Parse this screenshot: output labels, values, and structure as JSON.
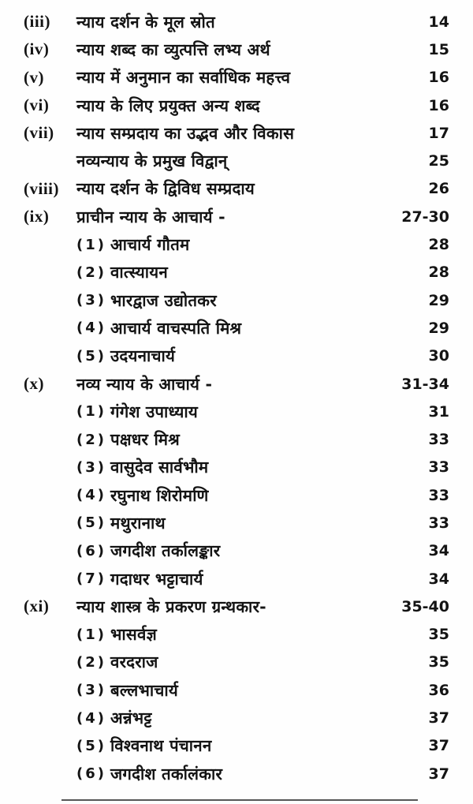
{
  "page": {
    "background": "#fefefe",
    "text_color": "#141414",
    "language": "Hindi (Devanagari)",
    "kind": "book-table-of-contents"
  },
  "toc": {
    "entries": [
      {
        "type": "main",
        "marker": "(iii)",
        "title": "न्याय दर्शन के मूल स्रोत",
        "page": "14"
      },
      {
        "type": "main",
        "marker": "(iv)",
        "title": "न्याय शब्द का व्युत्पत्ति लभ्य अर्थ",
        "page": "15"
      },
      {
        "type": "main",
        "marker": "(v)",
        "title": "न्याय में अनुमान का सर्वाधिक महत्त्व",
        "page": "16"
      },
      {
        "type": "main",
        "marker": "(vi)",
        "title": "न्याय के लिए प्रयुक्त अन्य शब्द",
        "page": "16"
      },
      {
        "type": "main",
        "marker": "(vii)",
        "title": "न्याय सम्प्रदाय का उद्भव और विकास",
        "page": "17"
      },
      {
        "type": "continuation",
        "marker": "",
        "title": "नव्यन्याय के प्रमुख विद्वान्",
        "page": "25"
      },
      {
        "type": "main",
        "marker": "(viii)",
        "title": "न्याय दर्शन के द्विविध सम्प्रदाय",
        "page": "26"
      },
      {
        "type": "main",
        "marker": "(ix)",
        "title": "प्राचीन न्याय के आचार्य -",
        "page": "27-30"
      },
      {
        "type": "sub",
        "marker": "(1)",
        "title": "आचार्य गौतम",
        "page": "28"
      },
      {
        "type": "sub",
        "marker": "(2)",
        "title": "वात्स्यायन",
        "page": "28"
      },
      {
        "type": "sub",
        "marker": "(3)",
        "title": "भारद्वाज उद्योतकर",
        "page": "29"
      },
      {
        "type": "sub",
        "marker": "(4)",
        "title": "आचार्य वाचस्पति मिश्र",
        "page": "29"
      },
      {
        "type": "sub",
        "marker": "(5)",
        "title": "उदयनाचार्य",
        "page": "30"
      },
      {
        "type": "main",
        "marker": "(x)",
        "title": "नव्य न्याय के आचार्य -",
        "page": "31-34"
      },
      {
        "type": "sub",
        "marker": "(1)",
        "title": "गंगेश उपाध्याय",
        "page": "31"
      },
      {
        "type": "sub",
        "marker": "(2)",
        "title": "पक्षधर मिश्र",
        "page": "33"
      },
      {
        "type": "sub",
        "marker": "(3)",
        "title": "वासुदेव सार्वभौम",
        "page": "33"
      },
      {
        "type": "sub",
        "marker": "(4)",
        "title": "रघुनाथ शिरोमणि",
        "page": "33"
      },
      {
        "type": "sub",
        "marker": "(5)",
        "title": "मथुरानाथ",
        "page": "33"
      },
      {
        "type": "sub",
        "marker": "(6)",
        "title": "जगदीश तर्कालङ्कार",
        "page": "34"
      },
      {
        "type": "sub",
        "marker": "(7)",
        "title": "गदाधर भट्टाचार्य",
        "page": "34"
      },
      {
        "type": "main",
        "marker": "(xi)",
        "title": "न्याय शास्त्र के प्रकरण ग्रन्थकार-",
        "page": "35-40"
      },
      {
        "type": "sub",
        "marker": "(1)",
        "title": "भासर्वज्ञ",
        "page": "35"
      },
      {
        "type": "sub",
        "marker": "(2)",
        "title": "वरदराज",
        "page": "35"
      },
      {
        "type": "sub",
        "marker": "(3)",
        "title": "बल्लभाचार्य",
        "page": "36"
      },
      {
        "type": "sub",
        "marker": "(4)",
        "title": "अन्नंभट्ट",
        "page": "37"
      },
      {
        "type": "sub",
        "marker": "(5)",
        "title": "विश्वनाथ पंचानन",
        "page": "37"
      },
      {
        "type": "sub",
        "marker": "(6)",
        "title": "जगदीश तर्कालंकार",
        "page": "37"
      }
    ]
  }
}
